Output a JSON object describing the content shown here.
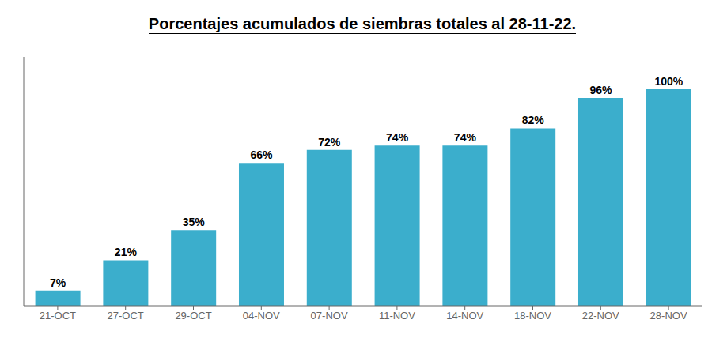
{
  "chart_data": {
    "type": "bar",
    "title": "Porcentajes acumulados de siembras totales al 28-11-22.",
    "categories": [
      "21-OCT",
      "27-OCT",
      "29-OCT",
      "04-NOV",
      "07-NOV",
      "11-NOV",
      "14-NOV",
      "18-NOV",
      "22-NOV",
      "28-NOV"
    ],
    "values": [
      7,
      21,
      35,
      66,
      72,
      74,
      74,
      82,
      96,
      100
    ],
    "value_labels": [
      "7%",
      "21%",
      "35%",
      "66%",
      "72%",
      "74%",
      "74%",
      "82%",
      "96%",
      "100%"
    ],
    "color": "#3BAECC",
    "ylim": [
      0,
      115
    ],
    "data_labels": true,
    "tick_labels": "x",
    "grid": false
  }
}
